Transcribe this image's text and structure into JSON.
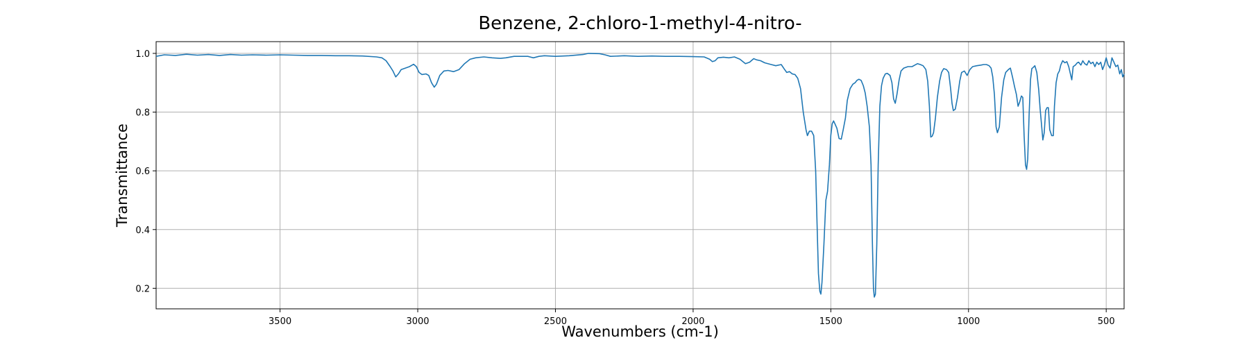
{
  "chart_data": {
    "type": "line",
    "title": "Benzene, 2-chloro-1-methyl-4-nitro-",
    "xlabel": "Wavenumbers (cm-1)",
    "ylabel": "Transmittance",
    "xlim": [
      3950,
      435
    ],
    "ylim": [
      0.13,
      1.04
    ],
    "x_reversed": true,
    "grid": true,
    "xticks": [
      3500,
      3000,
      2500,
      2000,
      1500,
      1000,
      500
    ],
    "xtick_labels": [
      "3500",
      "3000",
      "2500",
      "2000",
      "1500",
      "1000",
      "500"
    ],
    "yticks": [
      0.2,
      0.4,
      0.6,
      0.8,
      1.0
    ],
    "ytick_labels": [
      "0.2",
      "0.4",
      "0.6",
      "0.8",
      "1.0"
    ],
    "series": [
      {
        "color": "#1f77b4",
        "points": [
          [
            3950,
            0.99
          ],
          [
            3920,
            0.995
          ],
          [
            3880,
            0.993
          ],
          [
            3840,
            0.997
          ],
          [
            3800,
            0.994
          ],
          [
            3760,
            0.996
          ],
          [
            3720,
            0.993
          ],
          [
            3680,
            0.996
          ],
          [
            3640,
            0.994
          ],
          [
            3600,
            0.995
          ],
          [
            3550,
            0.994
          ],
          [
            3500,
            0.995
          ],
          [
            3450,
            0.994
          ],
          [
            3400,
            0.993
          ],
          [
            3350,
            0.993
          ],
          [
            3300,
            0.992
          ],
          [
            3250,
            0.992
          ],
          [
            3200,
            0.991
          ],
          [
            3150,
            0.988
          ],
          [
            3130,
            0.985
          ],
          [
            3115,
            0.975
          ],
          [
            3100,
            0.955
          ],
          [
            3090,
            0.94
          ],
          [
            3080,
            0.92
          ],
          [
            3070,
            0.93
          ],
          [
            3060,
            0.945
          ],
          [
            3045,
            0.95
          ],
          [
            3030,
            0.955
          ],
          [
            3015,
            0.963
          ],
          [
            3005,
            0.955
          ],
          [
            2995,
            0.935
          ],
          [
            2985,
            0.928
          ],
          [
            2970,
            0.93
          ],
          [
            2960,
            0.925
          ],
          [
            2950,
            0.9
          ],
          [
            2940,
            0.885
          ],
          [
            2932,
            0.895
          ],
          [
            2920,
            0.925
          ],
          [
            2905,
            0.94
          ],
          [
            2890,
            0.942
          ],
          [
            2870,
            0.938
          ],
          [
            2850,
            0.945
          ],
          [
            2830,
            0.965
          ],
          [
            2810,
            0.98
          ],
          [
            2790,
            0.985
          ],
          [
            2760,
            0.988
          ],
          [
            2730,
            0.985
          ],
          [
            2700,
            0.983
          ],
          [
            2680,
            0.985
          ],
          [
            2650,
            0.99
          ],
          [
            2600,
            0.99
          ],
          [
            2580,
            0.985
          ],
          [
            2560,
            0.99
          ],
          [
            2540,
            0.992
          ],
          [
            2500,
            0.99
          ],
          [
            2450,
            0.992
          ],
          [
            2400,
            0.996
          ],
          [
            2380,
            1.0
          ],
          [
            2340,
            0.999
          ],
          [
            2320,
            0.995
          ],
          [
            2300,
            0.99
          ],
          [
            2250,
            0.992
          ],
          [
            2200,
            0.99
          ],
          [
            2150,
            0.991
          ],
          [
            2100,
            0.99
          ],
          [
            2050,
            0.99
          ],
          [
            2000,
            0.989
          ],
          [
            1960,
            0.988
          ],
          [
            1940,
            0.98
          ],
          [
            1930,
            0.972
          ],
          [
            1920,
            0.975
          ],
          [
            1910,
            0.985
          ],
          [
            1890,
            0.987
          ],
          [
            1870,
            0.985
          ],
          [
            1850,
            0.988
          ],
          [
            1830,
            0.98
          ],
          [
            1810,
            0.965
          ],
          [
            1795,
            0.97
          ],
          [
            1780,
            0.982
          ],
          [
            1770,
            0.978
          ],
          [
            1755,
            0.975
          ],
          [
            1740,
            0.968
          ],
          [
            1720,
            0.963
          ],
          [
            1700,
            0.958
          ],
          [
            1680,
            0.962
          ],
          [
            1670,
            0.948
          ],
          [
            1660,
            0.935
          ],
          [
            1650,
            0.938
          ],
          [
            1640,
            0.93
          ],
          [
            1630,
            0.928
          ],
          [
            1620,
            0.915
          ],
          [
            1610,
            0.88
          ],
          [
            1600,
            0.8
          ],
          [
            1590,
            0.74
          ],
          [
            1585,
            0.72
          ],
          [
            1578,
            0.735
          ],
          [
            1570,
            0.735
          ],
          [
            1562,
            0.72
          ],
          [
            1555,
            0.6
          ],
          [
            1550,
            0.42
          ],
          [
            1545,
            0.25
          ],
          [
            1540,
            0.19
          ],
          [
            1536,
            0.18
          ],
          [
            1532,
            0.22
          ],
          [
            1525,
            0.35
          ],
          [
            1518,
            0.5
          ],
          [
            1512,
            0.53
          ],
          [
            1505,
            0.62
          ],
          [
            1500,
            0.72
          ],
          [
            1495,
            0.76
          ],
          [
            1490,
            0.77
          ],
          [
            1485,
            0.76
          ],
          [
            1478,
            0.745
          ],
          [
            1470,
            0.71
          ],
          [
            1462,
            0.708
          ],
          [
            1455,
            0.74
          ],
          [
            1447,
            0.78
          ],
          [
            1440,
            0.84
          ],
          [
            1430,
            0.88
          ],
          [
            1420,
            0.895
          ],
          [
            1412,
            0.9
          ],
          [
            1405,
            0.908
          ],
          [
            1398,
            0.912
          ],
          [
            1390,
            0.908
          ],
          [
            1382,
            0.89
          ],
          [
            1375,
            0.865
          ],
          [
            1368,
            0.82
          ],
          [
            1360,
            0.75
          ],
          [
            1354,
            0.62
          ],
          [
            1349,
            0.35
          ],
          [
            1345,
            0.2
          ],
          [
            1342,
            0.17
          ],
          [
            1338,
            0.18
          ],
          [
            1333,
            0.35
          ],
          [
            1328,
            0.62
          ],
          [
            1322,
            0.82
          ],
          [
            1316,
            0.89
          ],
          [
            1310,
            0.915
          ],
          [
            1302,
            0.93
          ],
          [
            1295,
            0.932
          ],
          [
            1285,
            0.925
          ],
          [
            1278,
            0.9
          ],
          [
            1272,
            0.845
          ],
          [
            1266,
            0.83
          ],
          [
            1260,
            0.86
          ],
          [
            1252,
            0.91
          ],
          [
            1245,
            0.94
          ],
          [
            1235,
            0.95
          ],
          [
            1220,
            0.955
          ],
          [
            1205,
            0.955
          ],
          [
            1195,
            0.96
          ],
          [
            1185,
            0.965
          ],
          [
            1175,
            0.962
          ],
          [
            1165,
            0.958
          ],
          [
            1155,
            0.945
          ],
          [
            1148,
            0.905
          ],
          [
            1142,
            0.82
          ],
          [
            1137,
            0.715
          ],
          [
            1132,
            0.718
          ],
          [
            1127,
            0.73
          ],
          [
            1120,
            0.78
          ],
          [
            1113,
            0.85
          ],
          [
            1105,
            0.905
          ],
          [
            1098,
            0.935
          ],
          [
            1090,
            0.948
          ],
          [
            1080,
            0.945
          ],
          [
            1072,
            0.935
          ],
          [
            1065,
            0.88
          ],
          [
            1060,
            0.83
          ],
          [
            1055,
            0.805
          ],
          [
            1048,
            0.81
          ],
          [
            1040,
            0.85
          ],
          [
            1032,
            0.905
          ],
          [
            1025,
            0.935
          ],
          [
            1015,
            0.94
          ],
          [
            1005,
            0.925
          ],
          [
            995,
            0.945
          ],
          [
            985,
            0.955
          ],
          [
            970,
            0.958
          ],
          [
            955,
            0.96
          ],
          [
            945,
            0.962
          ],
          [
            935,
            0.962
          ],
          [
            925,
            0.958
          ],
          [
            918,
            0.95
          ],
          [
            912,
            0.92
          ],
          [
            906,
            0.86
          ],
          [
            900,
            0.75
          ],
          [
            895,
            0.73
          ],
          [
            888,
            0.75
          ],
          [
            880,
            0.85
          ],
          [
            872,
            0.91
          ],
          [
            865,
            0.935
          ],
          [
            855,
            0.945
          ],
          [
            848,
            0.95
          ],
          [
            840,
            0.918
          ],
          [
            833,
            0.888
          ],
          [
            826,
            0.86
          ],
          [
            820,
            0.82
          ],
          [
            814,
            0.835
          ],
          [
            808,
            0.855
          ],
          [
            803,
            0.85
          ],
          [
            798,
            0.72
          ],
          [
            793,
            0.62
          ],
          [
            789,
            0.605
          ],
          [
            785,
            0.64
          ],
          [
            780,
            0.79
          ],
          [
            775,
            0.91
          ],
          [
            770,
            0.948
          ],
          [
            765,
            0.952
          ],
          [
            759,
            0.958
          ],
          [
            752,
            0.935
          ],
          [
            745,
            0.875
          ],
          [
            740,
            0.81
          ],
          [
            735,
            0.76
          ],
          [
            730,
            0.705
          ],
          [
            725,
            0.73
          ],
          [
            720,
            0.805
          ],
          [
            715,
            0.815
          ],
          [
            710,
            0.815
          ],
          [
            705,
            0.74
          ],
          [
            698,
            0.72
          ],
          [
            692,
            0.72
          ],
          [
            688,
            0.82
          ],
          [
            682,
            0.9
          ],
          [
            676,
            0.93
          ],
          [
            670,
            0.94
          ],
          [
            665,
            0.96
          ],
          [
            658,
            0.975
          ],
          [
            650,
            0.968
          ],
          [
            643,
            0.972
          ],
          [
            636,
            0.955
          ],
          [
            630,
            0.93
          ],
          [
            625,
            0.91
          ],
          [
            620,
            0.955
          ],
          [
            612,
            0.96
          ],
          [
            605,
            0.968
          ],
          [
            600,
            0.97
          ],
          [
            592,
            0.96
          ],
          [
            585,
            0.975
          ],
          [
            578,
            0.965
          ],
          [
            570,
            0.96
          ],
          [
            563,
            0.975
          ],
          [
            556,
            0.965
          ],
          [
            548,
            0.97
          ],
          [
            541,
            0.955
          ],
          [
            534,
            0.97
          ],
          [
            527,
            0.962
          ],
          [
            520,
            0.97
          ],
          [
            513,
            0.945
          ],
          [
            507,
            0.96
          ],
          [
            500,
            0.985
          ],
          [
            493,
            0.96
          ],
          [
            486,
            0.95
          ],
          [
            479,
            0.985
          ],
          [
            472,
            0.97
          ],
          [
            465,
            0.955
          ],
          [
            458,
            0.96
          ],
          [
            451,
            0.93
          ],
          [
            445,
            0.945
          ],
          [
            440,
            0.92
          ],
          [
            435,
            0.93
          ]
        ]
      }
    ]
  }
}
